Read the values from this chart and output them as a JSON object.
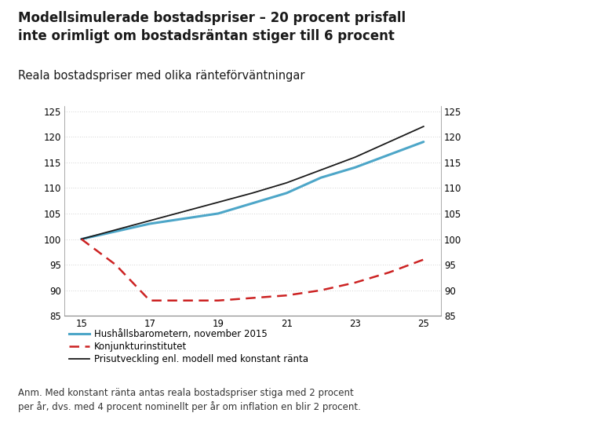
{
  "title_main": "Modellsimulerade bostadspriser – 20 procent prisfall\ninte orimligt om bostadsräntan stiger till 6 procent",
  "subtitle": "Reala bostadspriser med olika ränteförväntningar",
  "x_values": [
    15,
    16,
    17,
    18,
    19,
    20,
    21,
    22,
    23,
    24,
    25
  ],
  "line_blue": [
    100,
    101.5,
    103.0,
    104.0,
    105.0,
    107.0,
    109.0,
    112.0,
    114.0,
    116.5,
    119.0
  ],
  "line_black": [
    100,
    101.8,
    103.6,
    105.4,
    107.2,
    109.0,
    111.0,
    113.5,
    116.0,
    119.0,
    122.0
  ],
  "line_red": [
    100,
    95.0,
    88.0,
    88.0,
    88.0,
    88.5,
    89.0,
    90.0,
    91.5,
    93.5,
    96.0
  ],
  "blue_color": "#4da6c8",
  "black_color": "#1a1a1a",
  "red_color": "#cc2222",
  "bg_color": "#ffffff",
  "grid_color": "#aaaaaa",
  "ylim": [
    85,
    126
  ],
  "yticks": [
    85,
    90,
    95,
    100,
    105,
    110,
    115,
    120,
    125
  ],
  "xticks": [
    15,
    17,
    19,
    21,
    23,
    25
  ],
  "legend_labels": [
    "Hushållsbarometern, november 2015",
    "Konjunkturinstitutet",
    "Prisutveckling enl. modell med konstant ränta"
  ],
  "annotation": "Anm. Med konstant ränta antas reala bostadspriser stiga med 2 procent\nper år, dvs. med 4 procent nominellt per år om inflation en blir 2 procent.",
  "title_fontsize": 12,
  "subtitle_fontsize": 10.5,
  "axis_fontsize": 8.5,
  "legend_fontsize": 8.5,
  "annotation_fontsize": 8.5
}
